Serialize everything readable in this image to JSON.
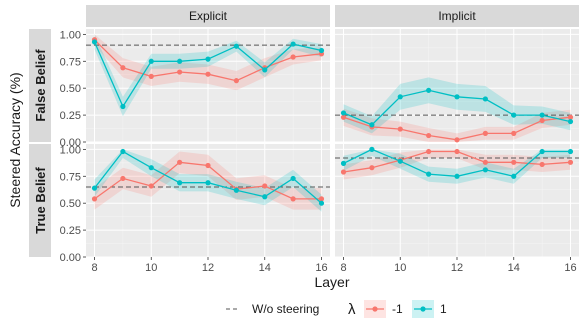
{
  "chart_data": {
    "type": "line",
    "facets": {
      "columns": [
        "Explicit",
        "Implicit"
      ],
      "rows": [
        "False Belief",
        "True Belief"
      ]
    },
    "xlabel": "Layer",
    "ylabel": "Steered Accuracy (%)",
    "x": [
      8,
      9,
      10,
      11,
      12,
      13,
      14,
      15,
      16
    ],
    "x_ticks": [
      8,
      10,
      12,
      14,
      16
    ],
    "xlim": [
      7.7,
      16.3
    ],
    "ylim": [
      0,
      1.05
    ],
    "y_ticks": [
      "0.00",
      "0.25",
      "0.50",
      "0.75",
      "1.00"
    ],
    "legend": {
      "position": "bottom",
      "baseline_label": "W/o steering",
      "lambda_title": "λ",
      "series_labels": [
        "-1",
        "1"
      ]
    },
    "colors": {
      "neg": "#F8766D",
      "pos": "#00BFC4",
      "baseline": "#555555",
      "panel_bg": "#EBEBEB",
      "strip_bg": "#D9D9D9",
      "grid": "#ffffff"
    },
    "panels": [
      {
        "row": "False Belief",
        "col": "Explicit",
        "baseline": 0.9,
        "neg": {
          "values": [
            0.95,
            0.69,
            0.61,
            0.65,
            0.63,
            0.57,
            0.69,
            0.79,
            0.82
          ],
          "lower": [
            0.9,
            0.6,
            0.52,
            0.56,
            0.54,
            0.48,
            0.6,
            0.72,
            0.76
          ],
          "upper": [
            1.0,
            0.78,
            0.7,
            0.74,
            0.72,
            0.66,
            0.78,
            0.86,
            0.88
          ]
        },
        "pos": {
          "values": [
            0.93,
            0.33,
            0.75,
            0.75,
            0.77,
            0.89,
            0.67,
            0.91,
            0.85
          ],
          "lower": [
            0.86,
            0.24,
            0.68,
            0.68,
            0.7,
            0.84,
            0.6,
            0.86,
            0.79
          ],
          "upper": [
            1.0,
            0.42,
            0.82,
            0.82,
            0.84,
            0.94,
            0.74,
            0.96,
            0.91
          ]
        }
      },
      {
        "row": "False Belief",
        "col": "Implicit",
        "baseline": 0.25,
        "neg": {
          "values": [
            0.23,
            0.14,
            0.12,
            0.06,
            0.02,
            0.08,
            0.08,
            0.2,
            0.23
          ],
          "lower": [
            0.15,
            0.06,
            0.05,
            0.0,
            0.0,
            0.02,
            0.02,
            0.13,
            0.16
          ],
          "upper": [
            0.31,
            0.22,
            0.19,
            0.13,
            0.08,
            0.14,
            0.14,
            0.27,
            0.3
          ]
        },
        "pos": {
          "values": [
            0.27,
            0.16,
            0.42,
            0.48,
            0.42,
            0.4,
            0.25,
            0.25,
            0.19
          ],
          "lower": [
            0.19,
            0.08,
            0.3,
            0.36,
            0.3,
            0.28,
            0.16,
            0.17,
            0.11
          ],
          "upper": [
            0.35,
            0.24,
            0.54,
            0.6,
            0.54,
            0.52,
            0.34,
            0.33,
            0.27
          ]
        }
      },
      {
        "row": "True Belief",
        "col": "Explicit",
        "baseline": 0.65,
        "neg": {
          "values": [
            0.54,
            0.73,
            0.66,
            0.88,
            0.85,
            0.63,
            0.66,
            0.54,
            0.54
          ],
          "lower": [
            0.44,
            0.63,
            0.56,
            0.78,
            0.75,
            0.53,
            0.56,
            0.44,
            0.44
          ],
          "upper": [
            0.64,
            0.83,
            0.76,
            0.98,
            0.95,
            0.73,
            0.76,
            0.64,
            0.64
          ]
        },
        "pos": {
          "values": [
            0.64,
            0.98,
            0.83,
            0.69,
            0.69,
            0.62,
            0.56,
            0.73,
            0.5
          ],
          "lower": [
            0.56,
            0.92,
            0.75,
            0.61,
            0.61,
            0.54,
            0.48,
            0.65,
            0.42
          ],
          "upper": [
            0.72,
            1.0,
            0.91,
            0.77,
            0.77,
            0.7,
            0.64,
            0.81,
            0.58
          ]
        }
      },
      {
        "row": "True Belief",
        "col": "Implicit",
        "baseline": 0.92,
        "neg": {
          "values": [
            0.79,
            0.83,
            0.9,
            0.98,
            0.98,
            0.88,
            0.88,
            0.86,
            0.88
          ],
          "lower": [
            0.72,
            0.76,
            0.83,
            0.92,
            0.92,
            0.81,
            0.81,
            0.79,
            0.81
          ],
          "upper": [
            0.86,
            0.9,
            0.97,
            1.0,
            1.0,
            0.95,
            0.95,
            0.93,
            0.95
          ]
        },
        "pos": {
          "values": [
            0.87,
            1.0,
            0.89,
            0.77,
            0.75,
            0.81,
            0.75,
            0.98,
            0.98
          ],
          "lower": [
            0.8,
            0.94,
            0.82,
            0.7,
            0.68,
            0.74,
            0.68,
            0.92,
            0.92
          ],
          "upper": [
            0.94,
            1.0,
            0.96,
            0.84,
            0.82,
            0.88,
            0.82,
            1.0,
            1.0
          ]
        }
      }
    ]
  }
}
